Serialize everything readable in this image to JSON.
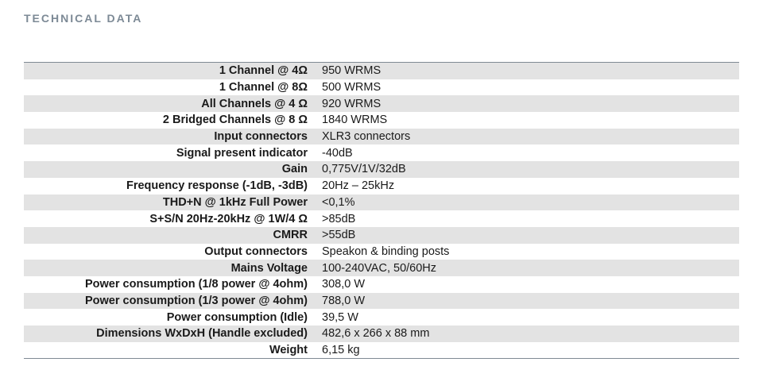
{
  "title": "TECHNICAL DATA",
  "rows": [
    {
      "label": "1 Channel @ 4Ω",
      "value": "950 WRMS"
    },
    {
      "label": "1 Channel @ 8Ω",
      "value": "500 WRMS"
    },
    {
      "label": "All Channels @ 4 Ω",
      "value": "920 WRMS"
    },
    {
      "label": "2 Bridged Channels @ 8 Ω",
      "value": "1840 WRMS"
    },
    {
      "label": "Input connectors",
      "value": "XLR3 connectors"
    },
    {
      "label": "Signal present indicator",
      "value": "-40dB"
    },
    {
      "label": "Gain",
      "value": "0,775V/1V/32dB"
    },
    {
      "label": "Frequency response (-1dB, -3dB)",
      "value": "20Hz – 25kHz"
    },
    {
      "label": "THD+N @ 1kHz Full Power",
      "value": "<0,1%"
    },
    {
      "label": "S+S/N 20Hz-20kHz @ 1W/4 Ω",
      "value": ">85dB"
    },
    {
      "label": "CMRR",
      "value": ">55dB"
    },
    {
      "label": "Output connectors",
      "value": "Speakon & binding posts"
    },
    {
      "label": "Mains Voltage",
      "value": "100-240VAC, 50/60Hz"
    },
    {
      "label": "Power consumption (1/8 power @ 4ohm)",
      "value": "308,0 W"
    },
    {
      "label": "Power consumption (1/3 power @ 4ohm)",
      "value": "788,0 W"
    },
    {
      "label": "Power consumption (Idle)",
      "value": "39,5 W"
    },
    {
      "label": "Dimensions WxDxH (Handle excluded)",
      "value": "482,6 x 266 x 88 mm"
    },
    {
      "label": "Weight",
      "value": "6,15 kg"
    }
  ]
}
